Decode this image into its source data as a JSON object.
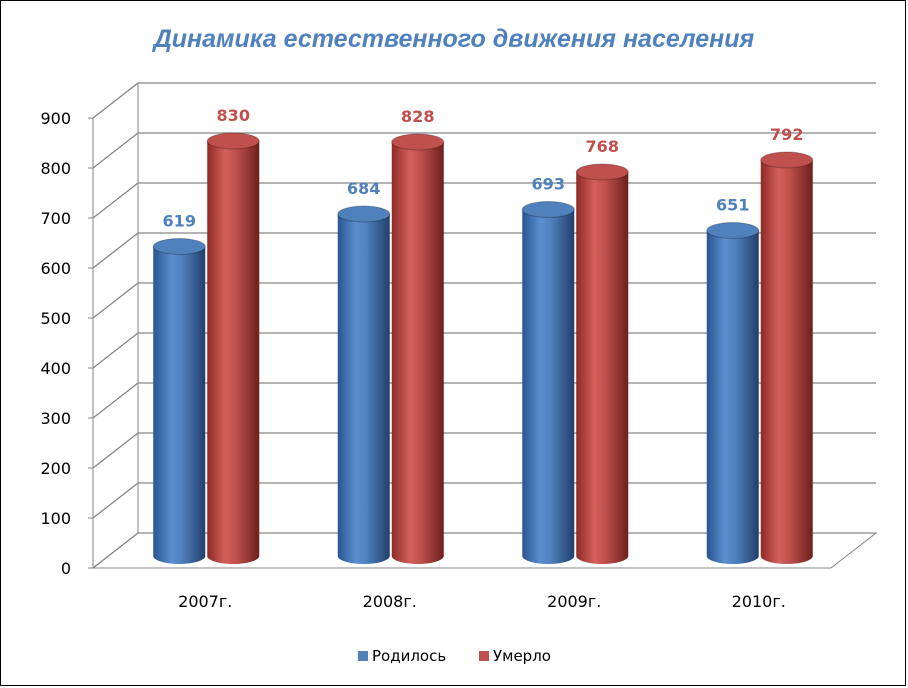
{
  "chart_data": {
    "type": "bar",
    "title": "Динамика естественного движения населения",
    "categories": [
      "2007г.",
      "2008г.",
      "2009г.",
      "2010г."
    ],
    "series": [
      {
        "name": "Родилось",
        "values": [
          619,
          684,
          693,
          651
        ],
        "color": "#4f81bd",
        "label_color": "#4f81bd"
      },
      {
        "name": "Умерло",
        "values": [
          830,
          828,
          768,
          792
        ],
        "color": "#c0504d",
        "label_color": "#c0504d"
      }
    ],
    "ylim": [
      0,
      900
    ],
    "yticks": [
      0,
      100,
      200,
      300,
      400,
      500,
      600,
      700,
      800,
      900
    ],
    "grid": true,
    "legend_position": "bottom",
    "style": "3d-cylinder"
  },
  "colors": {
    "title": "#4f81bd",
    "grid": "#868686",
    "wall": "#ffffff",
    "frame": "#000000"
  }
}
